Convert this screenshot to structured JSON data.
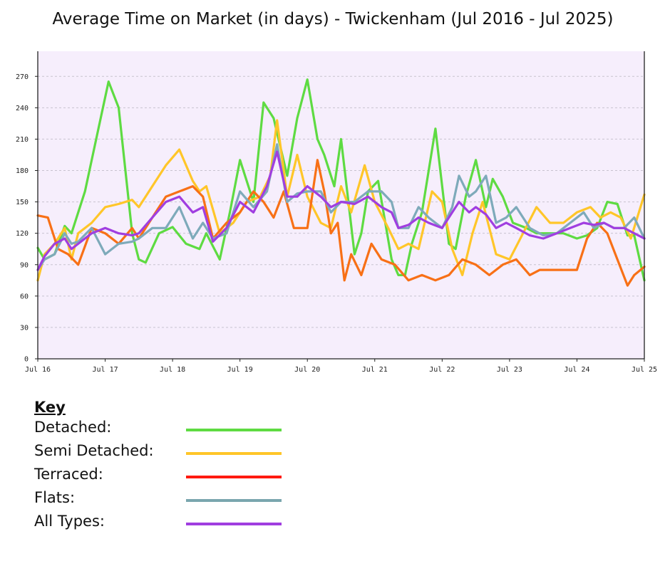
{
  "chart_data": {
    "type": "line",
    "title": "Average Time on Market (in days) - Twickenham (Jul 2016 - Jul 2025)",
    "ylim": [
      0,
      294
    ],
    "yticks": [
      0,
      30,
      60,
      90,
      120,
      150,
      180,
      210,
      240,
      270
    ],
    "xticks": [
      "Jul 16",
      "Jul 17",
      "Jul 18",
      "Jul 19",
      "Jul 20",
      "Jul 21",
      "Jul 22",
      "Jul 23",
      "Jul 24",
      "Jul 25"
    ],
    "x_start": 2016.5,
    "x_end": 2025.5,
    "grid": true,
    "legend_placement": "below",
    "key": {
      "heading": "Key",
      "items": [
        {
          "label": "Detached:",
          "series": "Detached"
        },
        {
          "label": "Semi Detached:",
          "series": "Semi Detached"
        },
        {
          "label": "Terraced:",
          "series": "Terraced"
        },
        {
          "label": "Flats:",
          "series": "Flats"
        },
        {
          "label": "All Types:",
          "series": "All Types"
        }
      ]
    },
    "series": [
      {
        "name": "Detached",
        "color": "#5edb42",
        "x": [
          2016.5,
          2016.6,
          2016.75,
          2016.9,
          2017.0,
          2017.2,
          2017.4,
          2017.55,
          2017.7,
          2017.9,
          2018.0,
          2018.1,
          2018.3,
          2018.5,
          2018.7,
          2018.9,
          2019.0,
          2019.2,
          2019.35,
          2019.5,
          2019.7,
          2019.85,
          2020.0,
          2020.2,
          2020.35,
          2020.5,
          2020.65,
          2020.75,
          2020.9,
          2021.0,
          2021.2,
          2021.3,
          2021.4,
          2021.55,
          2021.75,
          2021.85,
          2021.95,
          2022.05,
          2022.2,
          2022.4,
          2022.6,
          2022.7,
          2022.85,
          2023.0,
          2023.15,
          2023.25,
          2023.4,
          2023.55,
          2023.75,
          2023.9,
          2024.1,
          2024.3,
          2024.5,
          2024.65,
          2024.8,
          2024.95,
          2025.1,
          2025.25,
          2025.35,
          2025.5
        ],
        "values": [
          106,
          95,
          100,
          127,
          120,
          160,
          220,
          265,
          240,
          120,
          95,
          92,
          120,
          126,
          110,
          105,
          120,
          95,
          140,
          190,
          150,
          245,
          230,
          175,
          230,
          267,
          210,
          195,
          165,
          210,
          100,
          120,
          160,
          170,
          95,
          80,
          80,
          110,
          140,
          220,
          110,
          105,
          155,
          190,
          145,
          172,
          155,
          130,
          125,
          120,
          120,
          120,
          115,
          118,
          125,
          150,
          148,
          118,
          118,
          75
        ]
      },
      {
        "name": "Semi Detached",
        "color": "#ffc629",
        "x": [
          2016.5,
          2016.6,
          2016.75,
          2016.9,
          2017.0,
          2017.1,
          2017.3,
          2017.5,
          2017.7,
          2017.9,
          2018.0,
          2018.2,
          2018.4,
          2018.6,
          2018.8,
          2018.9,
          2019.0,
          2019.2,
          2019.4,
          2019.6,
          2019.8,
          2019.95,
          2020.05,
          2020.2,
          2020.35,
          2020.5,
          2020.7,
          2020.85,
          2021.0,
          2021.15,
          2021.35,
          2021.5,
          2021.7,
          2021.85,
          2022.0,
          2022.15,
          2022.35,
          2022.5,
          2022.65,
          2022.8,
          2022.95,
          2023.1,
          2023.3,
          2023.5,
          2023.7,
          2023.9,
          2024.1,
          2024.3,
          2024.5,
          2024.7,
          2024.85,
          2025.0,
          2025.15,
          2025.3,
          2025.5
        ],
        "values": [
          75,
          100,
          110,
          125,
          95,
          120,
          130,
          145,
          148,
          152,
          145,
          165,
          185,
          200,
          170,
          160,
          165,
          120,
          130,
          150,
          155,
          175,
          228,
          155,
          195,
          155,
          130,
          125,
          165,
          140,
          185,
          150,
          125,
          105,
          110,
          105,
          160,
          150,
          105,
          80,
          120,
          150,
          100,
          95,
          120,
          145,
          130,
          130,
          140,
          145,
          135,
          140,
          135,
          115,
          157
        ]
      },
      {
        "name": "Terraced",
        "color": "#f87016",
        "x": [
          2016.5,
          2016.65,
          2016.8,
          2016.95,
          2017.1,
          2017.3,
          2017.5,
          2017.7,
          2017.9,
          2018.0,
          2018.2,
          2018.4,
          2018.6,
          2018.8,
          2018.95,
          2019.1,
          2019.3,
          2019.5,
          2019.7,
          2019.85,
          2020.0,
          2020.15,
          2020.3,
          2020.5,
          2020.65,
          2020.75,
          2020.85,
          2020.95,
          2021.05,
          2021.15,
          2021.3,
          2021.45,
          2021.6,
          2021.8,
          2022.0,
          2022.2,
          2022.4,
          2022.6,
          2022.8,
          2023.0,
          2023.2,
          2023.4,
          2023.6,
          2023.8,
          2023.95,
          2024.1,
          2024.3,
          2024.5,
          2024.65,
          2024.8,
          2024.95,
          2025.1,
          2025.25,
          2025.35,
          2025.5
        ],
        "values": [
          137,
          135,
          105,
          100,
          90,
          125,
          120,
          110,
          125,
          115,
          135,
          155,
          160,
          165,
          155,
          115,
          130,
          140,
          160,
          150,
          135,
          160,
          125,
          125,
          190,
          160,
          120,
          130,
          75,
          100,
          80,
          110,
          95,
          90,
          75,
          80,
          75,
          80,
          95,
          90,
          80,
          90,
          95,
          80,
          85,
          85,
          85,
          85,
          115,
          130,
          120,
          95,
          70,
          80,
          88
        ]
      },
      {
        "name": "Flats",
        "color": "#7eaaba",
        "x": [
          2016.5,
          2016.6,
          2016.75,
          2016.9,
          2017.0,
          2017.1,
          2017.3,
          2017.5,
          2017.7,
          2017.9,
          2018.0,
          2018.2,
          2018.4,
          2018.6,
          2018.8,
          2018.95,
          2019.1,
          2019.3,
          2019.5,
          2019.7,
          2019.9,
          2020.05,
          2020.2,
          2020.35,
          2020.5,
          2020.7,
          2020.85,
          2021.0,
          2021.2,
          2021.4,
          2021.6,
          2021.75,
          2021.85,
          2022.0,
          2022.15,
          2022.3,
          2022.5,
          2022.65,
          2022.75,
          2022.9,
          2023.0,
          2023.15,
          2023.3,
          2023.45,
          2023.6,
          2023.8,
          2024.0,
          2024.2,
          2024.4,
          2024.6,
          2024.75,
          2024.9,
          2025.05,
          2025.2,
          2025.35,
          2025.5
        ],
        "values": [
          85,
          95,
          100,
          120,
          110,
          112,
          125,
          100,
          110,
          112,
          115,
          125,
          125,
          145,
          115,
          130,
          115,
          120,
          160,
          145,
          160,
          205,
          150,
          158,
          160,
          160,
          140,
          150,
          150,
          160,
          160,
          150,
          125,
          125,
          145,
          135,
          125,
          145,
          175,
          155,
          160,
          175,
          130,
          135,
          145,
          125,
          118,
          120,
          130,
          140,
          125,
          130,
          125,
          125,
          135,
          115
        ]
      },
      {
        "name": "All Types",
        "color": "#a03ee0",
        "x": [
          2016.5,
          2016.6,
          2016.75,
          2016.9,
          2017.0,
          2017.1,
          2017.3,
          2017.5,
          2017.7,
          2017.9,
          2018.0,
          2018.2,
          2018.4,
          2018.6,
          2018.8,
          2018.95,
          2019.1,
          2019.3,
          2019.5,
          2019.7,
          2019.9,
          2020.05,
          2020.2,
          2020.35,
          2020.5,
          2020.7,
          2020.85,
          2021.0,
          2021.2,
          2021.4,
          2021.6,
          2021.75,
          2021.85,
          2022.0,
          2022.15,
          2022.3,
          2022.5,
          2022.65,
          2022.75,
          2022.9,
          2023.0,
          2023.15,
          2023.3,
          2023.45,
          2023.6,
          2023.8,
          2024.0,
          2024.2,
          2024.4,
          2024.6,
          2024.75,
          2024.9,
          2025.05,
          2025.2,
          2025.35,
          2025.5
        ],
        "values": [
          85,
          98,
          110,
          115,
          105,
          110,
          120,
          125,
          120,
          118,
          120,
          135,
          150,
          155,
          140,
          145,
          112,
          125,
          150,
          140,
          165,
          198,
          155,
          155,
          165,
          155,
          145,
          150,
          148,
          155,
          145,
          140,
          125,
          128,
          135,
          130,
          125,
          140,
          150,
          140,
          145,
          138,
          125,
          130,
          125,
          118,
          115,
          120,
          125,
          130,
          128,
          130,
          125,
          125,
          120,
          115
        ]
      }
    ]
  }
}
